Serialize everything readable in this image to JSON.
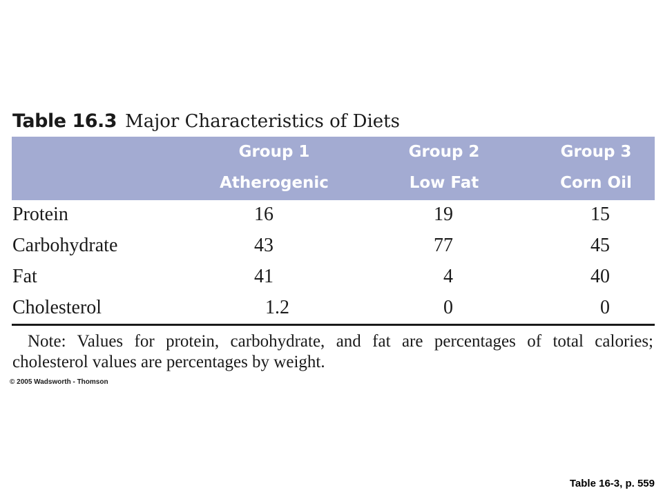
{
  "table": {
    "number": "Table 16.3",
    "caption": "Major Characteristics of Diets",
    "columns": [
      {
        "line1": "Group 1",
        "line2": "Atherogenic"
      },
      {
        "line1": "Group 2",
        "line2": "Low Fat"
      },
      {
        "line1": "Group 3",
        "line2": "Corn Oil"
      }
    ],
    "rows": [
      {
        "label": "Protein",
        "values": [
          "16",
          "19",
          "15"
        ]
      },
      {
        "label": "Carbohydrate",
        "values": [
          "43",
          "77",
          "45"
        ]
      },
      {
        "label": "Fat",
        "values": [
          "41",
          "4",
          "40"
        ]
      },
      {
        "label": "Cholesterol",
        "values": [
          "1.2",
          "0",
          "0"
        ]
      }
    ],
    "note": "Note: Values for protein, carbohydrate, and fat are percentages of total calories; cholesterol values are percentages by weight."
  },
  "copyright": "© 2005 Wadsworth - Thomson",
  "page_reference": "Table 16-3, p. 559",
  "colors": {
    "header_band": "#a3abd2",
    "header_text": "#ffffff",
    "text": "#1a1a1a"
  }
}
